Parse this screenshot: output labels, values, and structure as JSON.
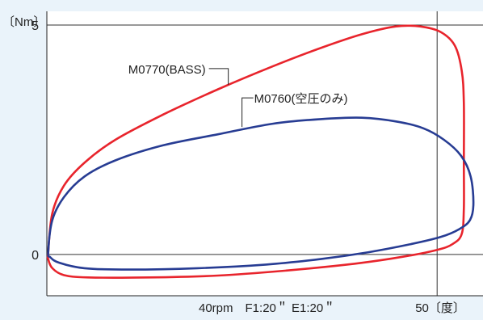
{
  "chart_data": {
    "type": "line",
    "ylabel": "〔Nm〕",
    "xlabel": "40rpm　F1:20＂ E1:20＂",
    "ylim": [
      -0.9,
      5.3
    ],
    "y_ticks": [
      {
        "value": 5,
        "label": "5"
      },
      {
        "value": 0,
        "label": "0"
      }
    ],
    "x_ticks": [
      {
        "value": 50,
        "label": "50〔度〕"
      }
    ],
    "xlim": [
      -7,
      56.7
    ],
    "grid": true,
    "series": [
      {
        "name": "M0770(BASS)",
        "color": "#e8242c",
        "closed": true,
        "points": [
          [
            -6.8,
            0.05
          ],
          [
            -6.2,
            0.9
          ],
          [
            -4.5,
            1.5
          ],
          [
            -1.5,
            2.0
          ],
          [
            3,
            2.5
          ],
          [
            10,
            3.05
          ],
          [
            18,
            3.6
          ],
          [
            26,
            4.1
          ],
          [
            33,
            4.5
          ],
          [
            39,
            4.8
          ],
          [
            44,
            4.97
          ],
          [
            47.5,
            4.97
          ],
          [
            50.5,
            4.85
          ],
          [
            52.6,
            4.55
          ],
          [
            53.6,
            4.0
          ],
          [
            53.9,
            3.3
          ],
          [
            53.9,
            2.0
          ],
          [
            53.9,
            1.0
          ],
          [
            53.6,
            0.45
          ],
          [
            52.3,
            0.23
          ],
          [
            50,
            0.1
          ],
          [
            45,
            -0.05
          ],
          [
            38,
            -0.2
          ],
          [
            28,
            -0.35
          ],
          [
            18,
            -0.46
          ],
          [
            8,
            -0.5
          ],
          [
            -1,
            -0.5
          ],
          [
            -4.5,
            -0.45
          ],
          [
            -6.2,
            -0.3
          ],
          [
            -6.8,
            -0.1
          ]
        ]
      },
      {
        "name": "M0760(空圧のみ)",
        "color": "#273c93",
        "closed": true,
        "points": [
          [
            -6.8,
            0.05
          ],
          [
            -6.2,
            0.75
          ],
          [
            -4.5,
            1.25
          ],
          [
            -1.5,
            1.7
          ],
          [
            3,
            2.05
          ],
          [
            10,
            2.38
          ],
          [
            18,
            2.62
          ],
          [
            26,
            2.85
          ],
          [
            33,
            2.95
          ],
          [
            39,
            2.98
          ],
          [
            44,
            2.9
          ],
          [
            48,
            2.75
          ],
          [
            51,
            2.5
          ],
          [
            53.5,
            2.15
          ],
          [
            54.9,
            1.7
          ],
          [
            55.3,
            1.1
          ],
          [
            54.8,
            0.75
          ],
          [
            53.2,
            0.55
          ],
          [
            50.5,
            0.38
          ],
          [
            46,
            0.22
          ],
          [
            40,
            0.05
          ],
          [
            33,
            -0.1
          ],
          [
            25,
            -0.22
          ],
          [
            15,
            -0.3
          ],
          [
            5,
            -0.33
          ],
          [
            -1.5,
            -0.3
          ],
          [
            -5.2,
            -0.18
          ],
          [
            -6.5,
            -0.06
          ]
        ]
      }
    ],
    "annotations": [
      {
        "text": "M0770(BASS)",
        "series": 0,
        "anchor_x": 19.5,
        "anchor_y": 3.7
      },
      {
        "text": "M0760(空圧のみ)",
        "series": 1,
        "anchor_x": 21.5,
        "anchor_y": 2.78
      }
    ]
  }
}
